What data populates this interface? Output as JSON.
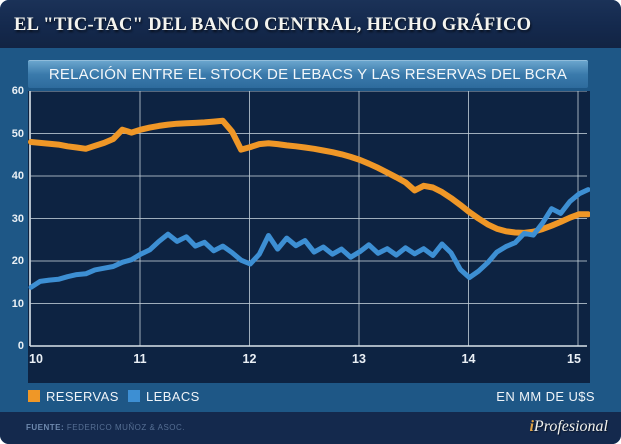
{
  "window": {
    "title": "EL \"TIC-TAC\" DEL BANCO CENTRAL, HECHO GRÁFICO"
  },
  "chart": {
    "subtitle": "RELACIÓN ENTRE EL STOCK DE LEBACS Y LAS RESERVAS DEL BCRA"
  },
  "legend": {
    "unit_note": "EN MM DE U$S"
  },
  "footer": {
    "source_label": "FUENTE:",
    "source_text": "FEDERICO MUÑOZ & ASOC.",
    "logo": {
      "prefix": "i",
      "rest": "Profesional"
    }
  },
  "colors": {
    "card_navy": "#14294d",
    "band_blue": "#1E5786",
    "plot_navy": "#0d2342",
    "header_bar_blue": "#3a7aab",
    "grid_gray": "#c3d0da",
    "reservas_orange": "#EF9727",
    "lebacs_blue": "#3D8FD3",
    "logo_gold": "#dfa246"
  },
  "chart_data": {
    "type": "line",
    "title": "RELACIÓN ENTRE EL STOCK DE LEBACS Y LAS RESERVAS DEL BCRA",
    "unit": "EN MM DE U$S",
    "sampling": "monthly",
    "x_start_year": 2010,
    "x_tick_labels": [
      "10",
      "11",
      "12",
      "13",
      "14",
      "15"
    ],
    "y_ticks": [
      60,
      50,
      40,
      30,
      20,
      10,
      0
    ],
    "ylim": [
      0,
      60
    ],
    "grid": true,
    "legend_position": "bottom",
    "series": [
      {
        "name": "RESERVAS",
        "color": "#EF9727",
        "values": [
          48.0,
          47.8,
          47.6,
          47.4,
          47.0,
          46.7,
          46.4,
          47.1,
          47.8,
          48.7,
          50.9,
          50.2,
          50.9,
          51.4,
          51.8,
          52.1,
          52.3,
          52.4,
          52.5,
          52.6,
          52.8,
          53.0,
          50.5,
          46.2,
          46.8,
          47.5,
          47.7,
          47.5,
          47.2,
          47.0,
          46.7,
          46.4,
          46.0,
          45.6,
          45.1,
          44.5,
          43.8,
          42.9,
          41.9,
          40.8,
          39.7,
          38.5,
          36.6,
          37.7,
          37.3,
          36.2,
          34.8,
          33.2,
          31.5,
          30.0,
          28.6,
          27.6,
          27.0,
          26.7,
          26.6,
          26.9,
          27.5,
          28.3,
          29.2,
          30.2,
          31.0,
          31.0
        ]
      },
      {
        "name": "LEBACS",
        "color": "#3D8FD3",
        "values": [
          13.8,
          15.2,
          15.5,
          15.7,
          16.3,
          16.8,
          17.0,
          17.9,
          18.3,
          18.7,
          19.7,
          20.3,
          21.6,
          22.6,
          24.6,
          26.3,
          24.6,
          25.7,
          23.5,
          24.4,
          22.4,
          23.5,
          22.0,
          20.2,
          19.3,
          21.6,
          26.0,
          22.8,
          25.4,
          23.6,
          24.8,
          22.1,
          23.3,
          21.6,
          22.8,
          20.9,
          22.2,
          23.8,
          21.8,
          22.9,
          21.4,
          23.1,
          21.7,
          22.9,
          21.3,
          24.0,
          21.9,
          18.0,
          16.1,
          17.6,
          19.6,
          22.1,
          23.4,
          24.3,
          26.5,
          26.1,
          28.9,
          32.3,
          31.2,
          34.0,
          35.8,
          36.8
        ]
      }
    ]
  }
}
